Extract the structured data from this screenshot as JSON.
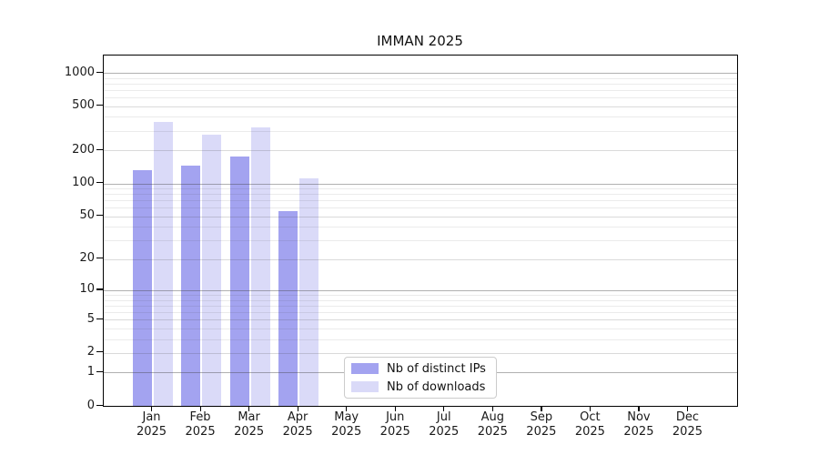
{
  "title": "IMMAN 2025",
  "colors": {
    "ips_bar": "#a3a3f0",
    "downloads_bar": "#dadaf8",
    "axis": "#000000",
    "grid_decade": "#b0b0b0",
    "grid_labeled": "#d9d9d9",
    "grid_minor": "#ececec",
    "legend_border": "#cccccc"
  },
  "chart_data": {
    "type": "bar",
    "title": "IMMAN 2025",
    "scale": "symlog-log1p",
    "grid": "on",
    "legend_position": "bottom-center-inside",
    "categories": [
      "Jan",
      "Feb",
      "Mar",
      "Apr",
      "May",
      "Jun",
      "Jul",
      "Aug",
      "Sep",
      "Oct",
      "Nov",
      "Dec"
    ],
    "category_year": "2025",
    "series": [
      {
        "name": "Nb of distinct IPs",
        "color": "#a3a3f0",
        "values": [
          132,
          145,
          176,
          56,
          0,
          0,
          0,
          0,
          0,
          0,
          0,
          0
        ]
      },
      {
        "name": "Nb of downloads",
        "color": "#dadaf8",
        "values": [
          360,
          276,
          322,
          112,
          0,
          0,
          0,
          0,
          0,
          0,
          0,
          0
        ]
      }
    ],
    "y_ticks": [
      1000,
      500,
      200,
      100,
      50,
      20,
      10,
      5,
      2,
      1,
      0
    ],
    "ylim": [
      0,
      1430
    ],
    "xlabel": "",
    "ylabel": ""
  }
}
